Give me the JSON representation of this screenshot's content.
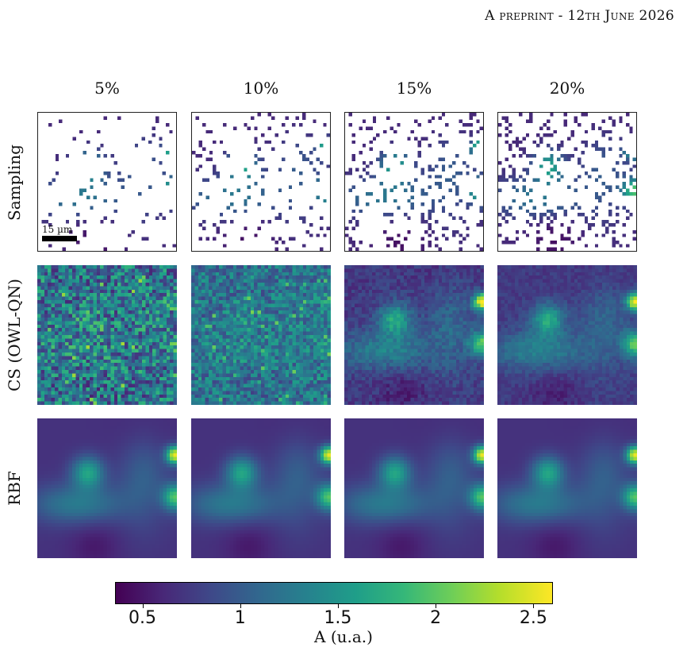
{
  "header": {
    "text": "A preprint - 12th June 2026"
  },
  "columns": [
    "5%",
    "10%",
    "15%",
    "20%"
  ],
  "rows": [
    "Sampling",
    "CS (OWL-QN)",
    "RBF"
  ],
  "scalebar": {
    "label": "15 µm"
  },
  "colorbar": {
    "label": "A (u.a.)",
    "ticks": [
      "0.5",
      "1",
      "1.5",
      "2",
      "2.5"
    ],
    "tick_values": [
      0.5,
      1.0,
      1.5,
      2.0,
      2.5
    ],
    "range": [
      0.36,
      2.6
    ],
    "colormap": "viridis"
  },
  "colors": {
    "low": "#440154",
    "mid": "#21918c",
    "high": "#fde725"
  }
}
